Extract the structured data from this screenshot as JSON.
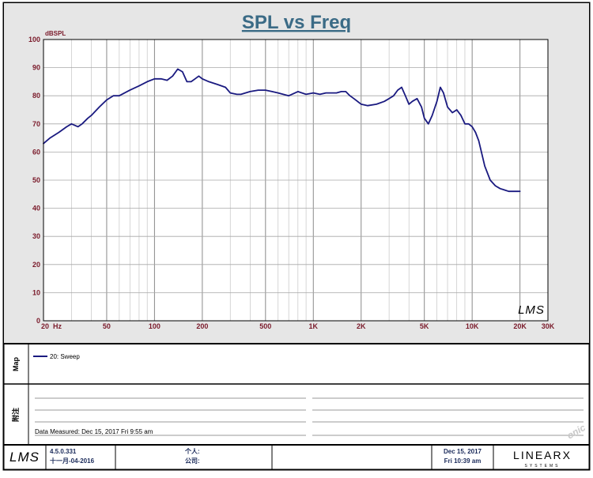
{
  "chart_data": {
    "type": "line",
    "title": "SPL vs Freq",
    "ylabel": "dBSPL",
    "x_scale": "log",
    "xlim": [
      20,
      30000
    ],
    "ylim": [
      0,
      100
    ],
    "grid": true,
    "y_ticks": [
      "0",
      "10",
      "20",
      "30",
      "40",
      "50",
      "60",
      "70",
      "80",
      "90",
      "100"
    ],
    "x_ticks": [
      {
        "v": 20,
        "label": "20  Hz"
      },
      {
        "v": 50,
        "label": "50"
      },
      {
        "v": 100,
        "label": "100"
      },
      {
        "v": 200,
        "label": "200"
      },
      {
        "v": 500,
        "label": "500"
      },
      {
        "v": 1000,
        "label": "1K"
      },
      {
        "v": 2000,
        "label": "2K"
      },
      {
        "v": 5000,
        "label": "5K"
      },
      {
        "v": 10000,
        "label": "10K"
      },
      {
        "v": 20000,
        "label": "20K"
      },
      {
        "v": 30000,
        "label": "30K"
      }
    ],
    "series": [
      {
        "name": "20: Sweep",
        "color": "#1a1a80",
        "x": [
          20,
          22,
          25,
          28,
          30,
          33,
          35,
          38,
          40,
          45,
          50,
          55,
          60,
          70,
          80,
          90,
          100,
          110,
          120,
          130,
          140,
          150,
          160,
          170,
          180,
          190,
          200,
          220,
          250,
          280,
          300,
          330,
          350,
          400,
          450,
          500,
          550,
          600,
          700,
          800,
          900,
          1000,
          1100,
          1200,
          1300,
          1400,
          1500,
          1600,
          1700,
          1800,
          2000,
          2200,
          2500,
          2800,
          3000,
          3200,
          3400,
          3600,
          3800,
          4000,
          4200,
          4500,
          4800,
          5000,
          5300,
          5600,
          6000,
          6300,
          6600,
          7000,
          7500,
          8000,
          8500,
          9000,
          9500,
          10000,
          10500,
          11000,
          12000,
          13000,
          14000,
          15000,
          16000,
          17000,
          18000,
          19000,
          20000
        ],
        "y": [
          63,
          65,
          67,
          69,
          70,
          69,
          70,
          72,
          73,
          76,
          78.5,
          80,
          80,
          82,
          83.5,
          85,
          86,
          86,
          85.5,
          87,
          89.5,
          88.5,
          85,
          85,
          86,
          87,
          86,
          85,
          84,
          83,
          81,
          80.5,
          80.5,
          81.5,
          82,
          82,
          81.5,
          81,
          80,
          81.5,
          80.5,
          81,
          80.5,
          81,
          81,
          81,
          81.5,
          81.5,
          80,
          79,
          77,
          76.5,
          77,
          78,
          79,
          80,
          82,
          83,
          80,
          77,
          78,
          79,
          76,
          72,
          70,
          73,
          78,
          83,
          81,
          76,
          74,
          75,
          73,
          70,
          70,
          69,
          67,
          64,
          55,
          50,
          48,
          47,
          46.5,
          46,
          46,
          46,
          46
        ]
      }
    ]
  },
  "logo": {
    "lms": "LMS",
    "brand": "LINEARX",
    "brand_sub": "SYSTEMS"
  },
  "legend": {
    "map_label": "Map",
    "entry": "20: Sweep"
  },
  "notes": {
    "section_label": "附注",
    "measured": "Data Measured: Dec 15, 2017  Fri  9:55 am"
  },
  "footer": {
    "version": "4.5.0.331",
    "version_date": "十一月-04-2016",
    "person_label": "个人:",
    "company_label": "公司:",
    "date": "Dec 15, 2017",
    "time": "Fri 10:39 am"
  },
  "watermark": "onic"
}
